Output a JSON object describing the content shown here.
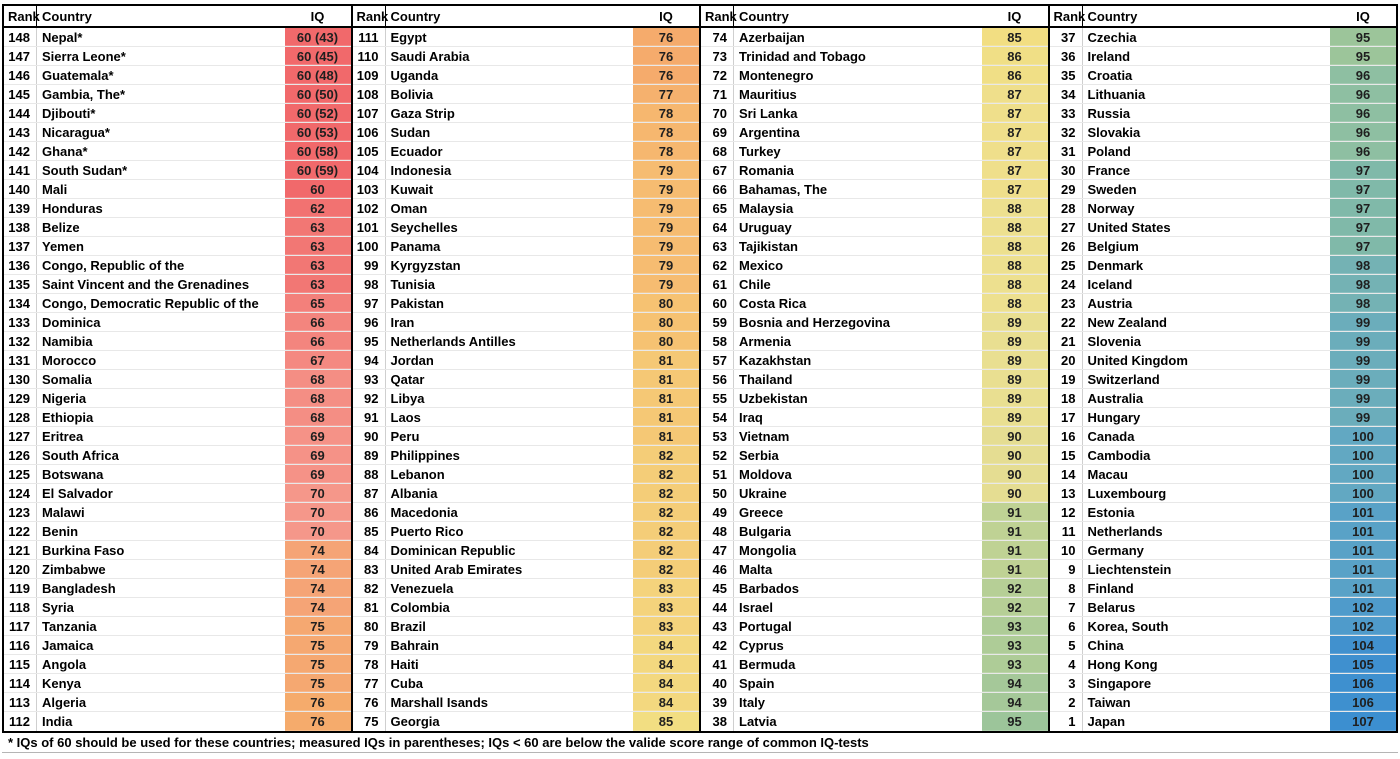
{
  "header": {
    "rank": "Rank",
    "country": "Country",
    "iq": "IQ"
  },
  "footnote": "* IQs of 60 should be used for these countries; measured IQs in parentheses; IQs < 60 are below the valide score range of common IQ-tests",
  "layout": {
    "panels": 4,
    "rows_per_panel": 37
  },
  "color_scale": [
    {
      "v": 60,
      "c": "#F1696B"
    },
    {
      "v": 70,
      "c": "#F5978A"
    },
    {
      "v": 76,
      "c": "#F5AB6C"
    },
    {
      "v": 80,
      "c": "#F6C272"
    },
    {
      "v": 85,
      "c": "#F2DE82"
    },
    {
      "v": 88,
      "c": "#EDE08F"
    },
    {
      "v": 90,
      "c": "#E5DD92"
    },
    {
      "v": 91,
      "c": "#BFD294"
    },
    {
      "v": 95,
      "c": "#9CC59A"
    },
    {
      "v": 97,
      "c": "#80B9A9"
    },
    {
      "v": 98,
      "c": "#74B2B4"
    },
    {
      "v": 100,
      "c": "#62A8C2"
    },
    {
      "v": 102,
      "c": "#4F9BCB"
    },
    {
      "v": 104,
      "c": "#4191CE"
    },
    {
      "v": 107,
      "c": "#3C8FD0"
    }
  ],
  "chart_data": {
    "type": "table",
    "columns": [
      "Rank",
      "Country",
      "IQ"
    ],
    "note": "rows are [rank, country, iq_label, iq_numeric]; table wraps into 4 panels of 37 rows",
    "rows": [
      [
        148,
        "Nepal*",
        "60 (43)",
        60
      ],
      [
        147,
        "Sierra Leone*",
        "60 (45)",
        60
      ],
      [
        146,
        "Guatemala*",
        "60 (48)",
        60
      ],
      [
        145,
        "Gambia, The*",
        "60 (50)",
        60
      ],
      [
        144,
        "Djibouti*",
        "60 (52)",
        60
      ],
      [
        143,
        "Nicaragua*",
        "60 (53)",
        60
      ],
      [
        142,
        "Ghana*",
        "60 (58)",
        60
      ],
      [
        141,
        "South Sudan*",
        "60 (59)",
        60
      ],
      [
        140,
        "Mali",
        "60",
        60
      ],
      [
        139,
        "Honduras",
        "62",
        62
      ],
      [
        138,
        "Belize",
        "63",
        63
      ],
      [
        137,
        "Yemen",
        "63",
        63
      ],
      [
        136,
        "Congo, Republic of the",
        "63",
        63
      ],
      [
        135,
        "Saint Vincent and the Grenadines",
        "63",
        63
      ],
      [
        134,
        "Congo, Democratic Republic of the",
        "65",
        65
      ],
      [
        133,
        "Dominica",
        "66",
        66
      ],
      [
        132,
        "Namibia",
        "66",
        66
      ],
      [
        131,
        "Morocco",
        "67",
        67
      ],
      [
        130,
        "Somalia",
        "68",
        68
      ],
      [
        129,
        "Nigeria",
        "68",
        68
      ],
      [
        128,
        "Ethiopia",
        "68",
        68
      ],
      [
        127,
        "Eritrea",
        "69",
        69
      ],
      [
        126,
        "South Africa",
        "69",
        69
      ],
      [
        125,
        "Botswana",
        "69",
        69
      ],
      [
        124,
        "El Salvador",
        "70",
        70
      ],
      [
        123,
        "Malawi",
        "70",
        70
      ],
      [
        122,
        "Benin",
        "70",
        70
      ],
      [
        121,
        "Burkina Faso",
        "74",
        74
      ],
      [
        120,
        "Zimbabwe",
        "74",
        74
      ],
      [
        119,
        "Bangladesh",
        "74",
        74
      ],
      [
        118,
        "Syria",
        "74",
        74
      ],
      [
        117,
        "Tanzania",
        "75",
        75
      ],
      [
        116,
        "Jamaica",
        "75",
        75
      ],
      [
        115,
        "Angola",
        "75",
        75
      ],
      [
        114,
        "Kenya",
        "75",
        75
      ],
      [
        113,
        "Algeria",
        "76",
        76
      ],
      [
        112,
        "India",
        "76",
        76
      ],
      [
        111,
        "Egypt",
        "76",
        76
      ],
      [
        110,
        "Saudi Arabia",
        "76",
        76
      ],
      [
        109,
        "Uganda",
        "76",
        76
      ],
      [
        108,
        "Bolivia",
        "77",
        77
      ],
      [
        107,
        "Gaza Strip",
        "78",
        78
      ],
      [
        106,
        "Sudan",
        "78",
        78
      ],
      [
        105,
        "Ecuador",
        "78",
        78
      ],
      [
        104,
        "Indonesia",
        "79",
        79
      ],
      [
        103,
        "Kuwait",
        "79",
        79
      ],
      [
        102,
        "Oman",
        "79",
        79
      ],
      [
        101,
        "Seychelles",
        "79",
        79
      ],
      [
        100,
        "Panama",
        "79",
        79
      ],
      [
        99,
        "Kyrgyzstan",
        "79",
        79
      ],
      [
        98,
        "Tunisia",
        "79",
        79
      ],
      [
        97,
        "Pakistan",
        "80",
        80
      ],
      [
        96,
        "Iran",
        "80",
        80
      ],
      [
        95,
        "Netherlands Antilles",
        "80",
        80
      ],
      [
        94,
        "Jordan",
        "81",
        81
      ],
      [
        93,
        "Qatar",
        "81",
        81
      ],
      [
        92,
        "Libya",
        "81",
        81
      ],
      [
        91,
        "Laos",
        "81",
        81
      ],
      [
        90,
        "Peru",
        "81",
        81
      ],
      [
        89,
        "Philippines",
        "82",
        82
      ],
      [
        88,
        "Lebanon",
        "82",
        82
      ],
      [
        87,
        "Albania",
        "82",
        82
      ],
      [
        86,
        "Macedonia",
        "82",
        82
      ],
      [
        85,
        "Puerto Rico",
        "82",
        82
      ],
      [
        84,
        "Dominican Republic",
        "82",
        82
      ],
      [
        83,
        "United Arab Emirates",
        "82",
        82
      ],
      [
        82,
        "Venezuela",
        "83",
        83
      ],
      [
        81,
        "Colombia",
        "83",
        83
      ],
      [
        80,
        "Brazil",
        "83",
        83
      ],
      [
        79,
        "Bahrain",
        "84",
        84
      ],
      [
        78,
        "Haiti",
        "84",
        84
      ],
      [
        77,
        "Cuba",
        "84",
        84
      ],
      [
        76,
        "Marshall Isands",
        "84",
        84
      ],
      [
        75,
        "Georgia",
        "85",
        85
      ],
      [
        74,
        "Azerbaijan",
        "85",
        85
      ],
      [
        73,
        "Trinidad and Tobago",
        "86",
        86
      ],
      [
        72,
        "Montenegro",
        "86",
        86
      ],
      [
        71,
        "Mauritius",
        "87",
        87
      ],
      [
        70,
        "Sri Lanka",
        "87",
        87
      ],
      [
        69,
        "Argentina",
        "87",
        87
      ],
      [
        68,
        "Turkey",
        "87",
        87
      ],
      [
        67,
        "Romania",
        "87",
        87
      ],
      [
        66,
        "Bahamas, The",
        "87",
        87
      ],
      [
        65,
        "Malaysia",
        "88",
        88
      ],
      [
        64,
        "Uruguay",
        "88",
        88
      ],
      [
        63,
        "Tajikistan",
        "88",
        88
      ],
      [
        62,
        "Mexico",
        "88",
        88
      ],
      [
        61,
        "Chile",
        "88",
        88
      ],
      [
        60,
        "Costa Rica",
        "88",
        88
      ],
      [
        59,
        "Bosnia and Herzegovina",
        "89",
        89
      ],
      [
        58,
        "Armenia",
        "89",
        89
      ],
      [
        57,
        "Kazakhstan",
        "89",
        89
      ],
      [
        56,
        "Thailand",
        "89",
        89
      ],
      [
        55,
        "Uzbekistan",
        "89",
        89
      ],
      [
        54,
        "Iraq",
        "89",
        89
      ],
      [
        53,
        "Vietnam",
        "90",
        90
      ],
      [
        52,
        "Serbia",
        "90",
        90
      ],
      [
        51,
        "Moldova",
        "90",
        90
      ],
      [
        50,
        "Ukraine",
        "90",
        90
      ],
      [
        49,
        "Greece",
        "91",
        91
      ],
      [
        48,
        "Bulgaria",
        "91",
        91
      ],
      [
        47,
        "Mongolia",
        "91",
        91
      ],
      [
        46,
        "Malta",
        "91",
        91
      ],
      [
        45,
        "Barbados",
        "92",
        92
      ],
      [
        44,
        "Israel",
        "92",
        92
      ],
      [
        43,
        "Portugal",
        "93",
        93
      ],
      [
        42,
        "Cyprus",
        "93",
        93
      ],
      [
        41,
        "Bermuda",
        "93",
        93
      ],
      [
        40,
        "Spain",
        "94",
        94
      ],
      [
        39,
        "Italy",
        "94",
        94
      ],
      [
        38,
        "Latvia",
        "95",
        95
      ],
      [
        37,
        "Czechia",
        "95",
        95
      ],
      [
        36,
        "Ireland",
        "95",
        95
      ],
      [
        35,
        "Croatia",
        "96",
        96
      ],
      [
        34,
        "Lithuania",
        "96",
        96
      ],
      [
        33,
        "Russia",
        "96",
        96
      ],
      [
        32,
        "Slovakia",
        "96",
        96
      ],
      [
        31,
        "Poland",
        "96",
        96
      ],
      [
        30,
        "France",
        "97",
        97
      ],
      [
        29,
        "Sweden",
        "97",
        97
      ],
      [
        28,
        "Norway",
        "97",
        97
      ],
      [
        27,
        "United States",
        "97",
        97
      ],
      [
        26,
        "Belgium",
        "97",
        97
      ],
      [
        25,
        "Denmark",
        "98",
        98
      ],
      [
        24,
        "Iceland",
        "98",
        98
      ],
      [
        23,
        "Austria",
        "98",
        98
      ],
      [
        22,
        "New Zealand",
        "99",
        99
      ],
      [
        21,
        "Slovenia",
        "99",
        99
      ],
      [
        20,
        "United Kingdom",
        "99",
        99
      ],
      [
        19,
        "Switzerland",
        "99",
        99
      ],
      [
        18,
        "Australia",
        "99",
        99
      ],
      [
        17,
        "Hungary",
        "99",
        99
      ],
      [
        16,
        "Canada",
        "100",
        100
      ],
      [
        15,
        "Cambodia",
        "100",
        100
      ],
      [
        14,
        "Macau",
        "100",
        100
      ],
      [
        13,
        "Luxembourg",
        "100",
        100
      ],
      [
        12,
        "Estonia",
        "101",
        101
      ],
      [
        11,
        "Netherlands",
        "101",
        101
      ],
      [
        10,
        "Germany",
        "101",
        101
      ],
      [
        9,
        "Liechtenstein",
        "101",
        101
      ],
      [
        8,
        "Finland",
        "101",
        101
      ],
      [
        7,
        "Belarus",
        "102",
        102
      ],
      [
        6,
        "Korea, South",
        "102",
        102
      ],
      [
        5,
        "China",
        "104",
        104
      ],
      [
        4,
        "Hong Kong",
        "105",
        105
      ],
      [
        3,
        "Singapore",
        "106",
        106
      ],
      [
        2,
        "Taiwan",
        "106",
        106
      ],
      [
        1,
        "Japan",
        "107",
        107
      ]
    ]
  }
}
